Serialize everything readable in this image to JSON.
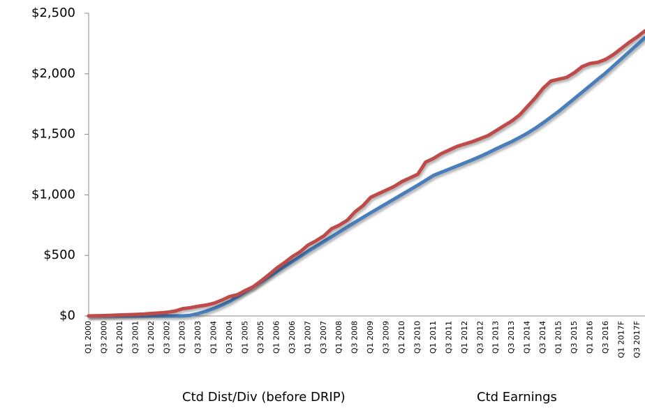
{
  "chart_data": {
    "type": "line",
    "categories": [
      "Q1 2000",
      null,
      "Q3 2000",
      null,
      "Q1 2001",
      null,
      "Q3 2001",
      null,
      "Q1 2002",
      null,
      "Q3 2002",
      null,
      "Q1 2003",
      null,
      "Q3 2003",
      null,
      "Q1 2004",
      null,
      "Q3 2004",
      null,
      "Q1 2005",
      null,
      "Q3 2005",
      null,
      "Q1 2006",
      null,
      "Q3 2006",
      null,
      "Q1 2007",
      null,
      "Q3 2007",
      null,
      "Q1 2008",
      null,
      "Q3 2008",
      null,
      "Q1 2009",
      null,
      "Q3 2009",
      null,
      "Q1 2010",
      null,
      "Q3 2010",
      null,
      "Q1 2011",
      null,
      "Q3 2011",
      null,
      "Q1 2012",
      null,
      "Q3 2012",
      null,
      "Q1 2013",
      null,
      "Q3 2013",
      null,
      "Q1 2014",
      null,
      "Q3 2014",
      null,
      "Q1 2015",
      null,
      "Q3 2015",
      null,
      "Q1 2016",
      null,
      "Q3 2016",
      null,
      "Q1 2017F",
      null,
      "Q3 2017F",
      null
    ],
    "series": [
      {
        "name": "Ctd Dist/Div (before DRIP)",
        "color": "#4a7ebb",
        "values": [
          0,
          0,
          0,
          0,
          0,
          0,
          0,
          0,
          0,
          0,
          0,
          0,
          0,
          5,
          20,
          40,
          62,
          90,
          120,
          160,
          200,
          240,
          282,
          324,
          366,
          408,
          450,
          492,
          534,
          574,
          614,
          654,
          694,
          734,
          774,
          814,
          852,
          890,
          928,
          966,
          1004,
          1042,
          1080,
          1120,
          1160,
          1186,
          1212,
          1238,
          1264,
          1290,
          1318,
          1348,
          1380,
          1410,
          1440,
          1474,
          1510,
          1550,
          1595,
          1642,
          1690,
          1743,
          1796,
          1849,
          1902,
          1955,
          2008,
          2066,
          2124,
          2182,
          2240,
          2298
        ]
      },
      {
        "name": "Ctd Earnings",
        "color": "#be4b48",
        "values": [
          0,
          1,
          3,
          5,
          8,
          10,
          12,
          15,
          20,
          25,
          30,
          40,
          60,
          68,
          80,
          90,
          105,
          130,
          160,
          175,
          210,
          240,
          290,
          340,
          395,
          440,
          490,
          530,
          585,
          620,
          660,
          720,
          750,
          790,
          860,
          910,
          980,
          1010,
          1040,
          1070,
          1110,
          1140,
          1170,
          1270,
          1300,
          1340,
          1370,
          1400,
          1420,
          1440,
          1465,
          1490,
          1530,
          1570,
          1610,
          1660,
          1730,
          1800,
          1880,
          1940,
          1955,
          1970,
          2010,
          2060,
          2085,
          2095,
          2120,
          2160,
          2210,
          2260,
          2305,
          2355
        ]
      }
    ],
    "ylim": [
      0,
      2500
    ],
    "yticks": [
      {
        "value": 0,
        "label": "$0"
      },
      {
        "value": 500,
        "label": "$500"
      },
      {
        "value": 1000,
        "label": "$1,000"
      },
      {
        "value": 1500,
        "label": "$1,500"
      },
      {
        "value": 2000,
        "label": "$2,000"
      },
      {
        "value": 2500,
        "label": "$2,500"
      }
    ],
    "grid": false,
    "legend": "bottom"
  }
}
